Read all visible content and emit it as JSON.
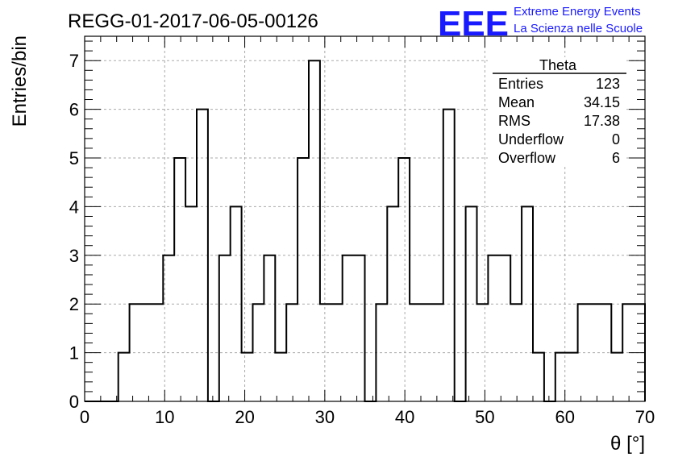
{
  "chart_data": {
    "type": "bar",
    "title": "REGG-01-2017-06-05-00126",
    "xlabel": "θ [°]",
    "ylabel": "Entries/bin",
    "xlim": [
      0,
      70
    ],
    "ylim": [
      0,
      7.5
    ],
    "grid": true,
    "x_ticks": [
      "0",
      "10",
      "20",
      "30",
      "40",
      "50",
      "60",
      "70"
    ],
    "y_ticks": [
      "0",
      "1",
      "2",
      "3",
      "4",
      "5",
      "6",
      "7"
    ],
    "bin_width": 1.4,
    "values": [
      0,
      0,
      0,
      1,
      2,
      2,
      2,
      3,
      5,
      4,
      6,
      0,
      3,
      4,
      1,
      2,
      3,
      1,
      2,
      5,
      7,
      2,
      2,
      3,
      3,
      0,
      2,
      4,
      5,
      2,
      2,
      2,
      6,
      0,
      4,
      2,
      3,
      3,
      2,
      4,
      1,
      0,
      1,
      1,
      2,
      2,
      2,
      1,
      2,
      2
    ],
    "stats": {
      "name": "Theta",
      "rows": [
        {
          "label": "Entries",
          "value": "123"
        },
        {
          "label": "Mean",
          "value": "34.15"
        },
        {
          "label": "RMS",
          "value": "17.38"
        },
        {
          "label": "Underflow",
          "value": "0"
        },
        {
          "label": "Overflow",
          "value": "6"
        }
      ]
    }
  },
  "logo": {
    "text": "EEE",
    "line1": "Extreme Energy Events",
    "line2": "La Scienza nelle Scuole",
    "color": "#1a1aff"
  }
}
